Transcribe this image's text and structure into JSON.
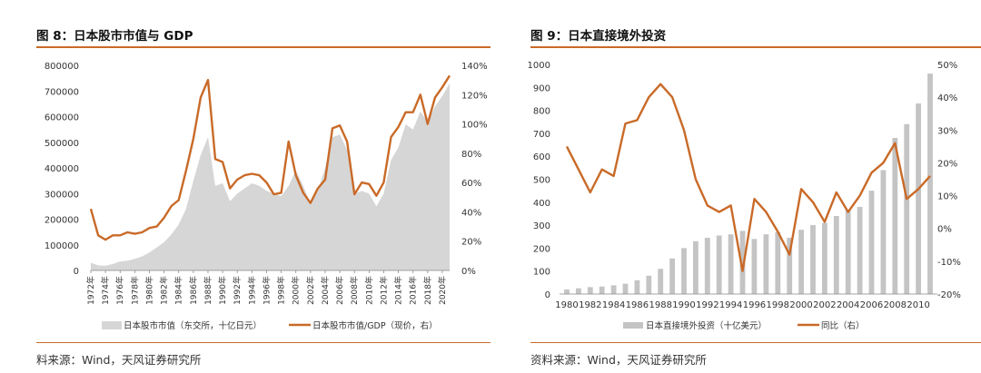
{
  "colors": {
    "accent": "#c96a28",
    "area": "#d6d6d6",
    "bar": "#c4c4c4",
    "text": "#333333"
  },
  "left": {
    "title": "图 8：日本股市市值与 GDP",
    "source": "料来源：Wind，天风证券研究所",
    "legend": {
      "area_label": "日本股市市值（东交所，十亿日元）",
      "line_label": "日本股市市值/GDP（现价，右）"
    },
    "chart_data": {
      "type": "area",
      "title": "图 8：日本股市市值与 GDP",
      "x_tick_labels": [
        "1972年",
        "1974年",
        "1976年",
        "1978年",
        "1980年",
        "1982年",
        "1984年",
        "1986年",
        "1988年",
        "1990年",
        "1992年",
        "1994年",
        "1996年",
        "1998年",
        "2000年",
        "2002年",
        "2004年",
        "2006年",
        "2008年",
        "2010年",
        "2012年",
        "2014年",
        "2016年",
        "2018年",
        "2020年"
      ],
      "y_left_ticks": [
        "0",
        "100000",
        "200000",
        "300000",
        "400000",
        "500000",
        "600000",
        "700000",
        "800000"
      ],
      "y_right_ticks": [
        "0%",
        "20%",
        "40%",
        "60%",
        "80%",
        "100%",
        "120%",
        "140%"
      ],
      "ylim_left": [
        0,
        800000
      ],
      "ylim_right": [
        0,
        140
      ],
      "series": [
        {
          "name": "日本股市市值（东交所，十亿日元）",
          "axis": "left",
          "kind": "area",
          "x": [
            1972,
            1973,
            1974,
            1975,
            1976,
            1977,
            1978,
            1979,
            1980,
            1981,
            1982,
            1983,
            1984,
            1985,
            1986,
            1987,
            1988,
            1989,
            1990,
            1991,
            1992,
            1993,
            1994,
            1995,
            1996,
            1997,
            1998,
            1999,
            2000,
            2001,
            2002,
            2003,
            2004,
            2005,
            2006,
            2007,
            2008,
            2009,
            2010,
            2011,
            2012,
            2013,
            2014,
            2015,
            2016,
            2017,
            2018,
            2019,
            2020,
            2021
          ],
          "values": [
            30000,
            20000,
            18000,
            25000,
            35000,
            38000,
            45000,
            55000,
            70000,
            90000,
            110000,
            140000,
            180000,
            240000,
            350000,
            450000,
            520000,
            330000,
            340000,
            270000,
            300000,
            320000,
            340000,
            330000,
            310000,
            300000,
            290000,
            330000,
            390000,
            330000,
            260000,
            310000,
            400000,
            520000,
            530000,
            470000,
            300000,
            310000,
            300000,
            250000,
            300000,
            430000,
            480000,
            570000,
            550000,
            620000,
            580000,
            640000,
            680000,
            730000
          ]
        },
        {
          "name": "日本股市市值/GDP（现价，右）",
          "axis": "right",
          "kind": "line",
          "x": [
            1972,
            1973,
            1974,
            1975,
            1976,
            1977,
            1978,
            1979,
            1980,
            1981,
            1982,
            1983,
            1984,
            1985,
            1986,
            1987,
            1988,
            1989,
            1990,
            1991,
            1992,
            1993,
            1994,
            1995,
            1996,
            1997,
            1998,
            1999,
            2000,
            2001,
            2002,
            2003,
            2004,
            2005,
            2006,
            2007,
            2008,
            2009,
            2010,
            2011,
            2012,
            2013,
            2014,
            2015,
            2016,
            2017,
            2018,
            2019,
            2020,
            2021
          ],
          "values": [
            42,
            24,
            21,
            24,
            24,
            26,
            25,
            26,
            29,
            30,
            36,
            44,
            48,
            68,
            90,
            118,
            130,
            76,
            74,
            56,
            62,
            65,
            66,
            65,
            60,
            52,
            53,
            88,
            65,
            53,
            46,
            56,
            62,
            97,
            99,
            88,
            52,
            60,
            59,
            51,
            60,
            91,
            98,
            108,
            108,
            120,
            100,
            118,
            125,
            133
          ]
        }
      ],
      "legend_position": "bottom"
    }
  },
  "right": {
    "title": "图 9：日本直接境外投资",
    "source": "资料来源：Wind，天风证券研究所",
    "legend": {
      "bar_label": "日本直接境外投资（十亿美元）",
      "line_label": "同比（右）"
    },
    "chart_data": {
      "type": "bar",
      "title": "图 9：日本直接境外投资",
      "x_tick_labels": [
        "1980",
        "1982",
        "1984",
        "1986",
        "1988",
        "1990",
        "1992",
        "1994",
        "1996",
        "1998",
        "2000",
        "2002",
        "2004",
        "2006",
        "2008",
        "2010"
      ],
      "y_left_ticks": [
        "0",
        "100",
        "200",
        "300",
        "400",
        "500",
        "600",
        "700",
        "800",
        "900",
        "1000"
      ],
      "y_right_ticks": [
        "-20%",
        "-10%",
        "0%",
        "10%",
        "20%",
        "30%",
        "40%",
        "50%"
      ],
      "ylim_left": [
        0,
        1000
      ],
      "ylim_right": [
        -20,
        50
      ],
      "series": [
        {
          "name": "日本直接境外投资（十亿美元）",
          "axis": "left",
          "kind": "bar",
          "x": [
            1980,
            1981,
            1982,
            1983,
            1984,
            1985,
            1986,
            1987,
            1988,
            1989,
            1990,
            1991,
            1992,
            1993,
            1994,
            1995,
            1996,
            1997,
            1998,
            1999,
            2000,
            2001,
            2002,
            2003,
            2004,
            2005,
            2006,
            2007,
            2008,
            2009,
            2010,
            2011
          ],
          "values": [
            20,
            25,
            30,
            33,
            38,
            45,
            60,
            80,
            110,
            155,
            200,
            230,
            245,
            255,
            260,
            275,
            240,
            260,
            270,
            245,
            280,
            300,
            310,
            340,
            365,
            380,
            450,
            540,
            680,
            740,
            830,
            960
          ]
        },
        {
          "name": "同比（右）",
          "axis": "right",
          "kind": "line",
          "x": [
            1980,
            1981,
            1982,
            1983,
            1984,
            1985,
            1986,
            1987,
            1988,
            1989,
            1990,
            1991,
            1992,
            1993,
            1994,
            1995,
            1996,
            1997,
            1998,
            1999,
            2000,
            2001,
            2002,
            2003,
            2004,
            2005,
            2006,
            2007,
            2008,
            2009,
            2010,
            2011
          ],
          "values": [
            25,
            18,
            11,
            18,
            16,
            32,
            33,
            40,
            44,
            40,
            30,
            15,
            7,
            5,
            7,
            -13,
            9,
            5,
            -1,
            -8,
            12,
            8,
            2,
            11,
            5,
            10,
            17,
            20,
            26,
            9,
            12,
            16
          ]
        }
      ],
      "legend_position": "bottom"
    }
  }
}
